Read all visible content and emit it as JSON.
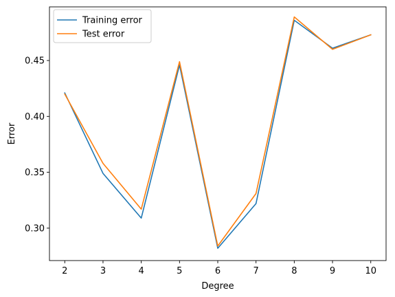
{
  "chart_data": {
    "type": "line",
    "title": "",
    "xlabel": "Degree",
    "ylabel": "Error",
    "x": [
      2,
      3,
      4,
      5,
      6,
      7,
      8,
      9,
      10
    ],
    "x_ticks": [
      2,
      3,
      4,
      5,
      6,
      7,
      8,
      9,
      10
    ],
    "y_ticks": [
      0.3,
      0.35,
      0.4,
      0.45
    ],
    "y_tick_labels": [
      "0.30",
      "0.35",
      "0.40",
      "0.45"
    ],
    "xlim": [
      1.6,
      10.4
    ],
    "ylim": [
      0.271,
      0.498
    ],
    "grid": false,
    "legend_position": "top-left",
    "series": [
      {
        "name": "Training error",
        "color": "#1f77b4",
        "values": [
          0.421,
          0.349,
          0.309,
          0.446,
          0.282,
          0.322,
          0.486,
          0.461,
          0.473
        ]
      },
      {
        "name": "Test error",
        "color": "#ff7f0e",
        "values": [
          0.42,
          0.358,
          0.317,
          0.449,
          0.284,
          0.331,
          0.489,
          0.46,
          0.473
        ]
      }
    ]
  }
}
